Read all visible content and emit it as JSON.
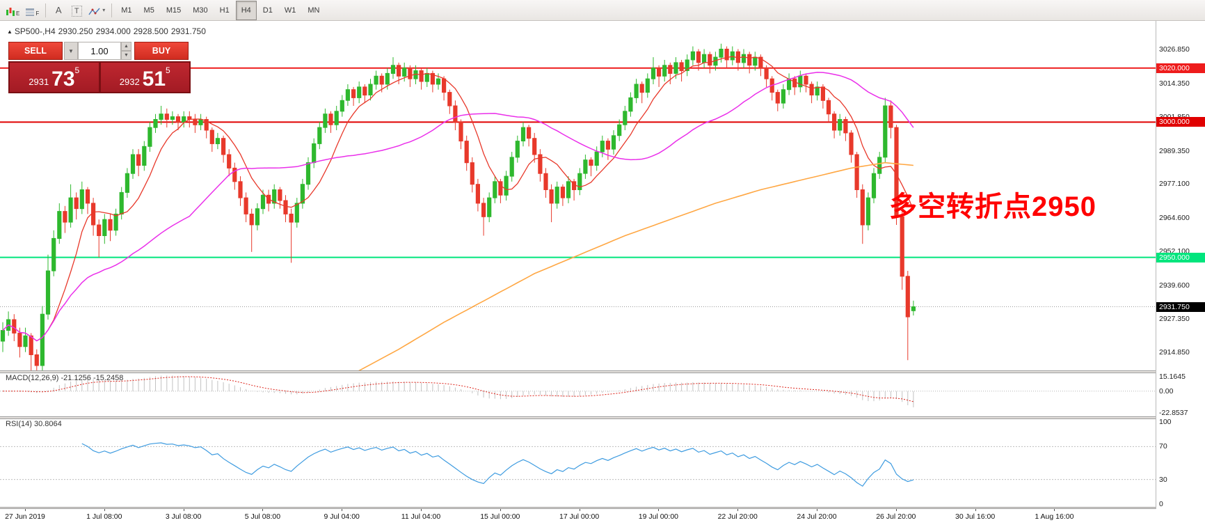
{
  "toolbar": {
    "icons": {
      "e": "E",
      "f": "F",
      "a": "A",
      "t": "T"
    },
    "timeframes": [
      "M1",
      "M5",
      "M15",
      "M30",
      "H1",
      "H4",
      "D1",
      "W1",
      "MN"
    ],
    "active_timeframe": "H4"
  },
  "chart_header": {
    "symbol": "SP500-,H4",
    "open": "2930.250",
    "high": "2934.000",
    "low": "2928.500",
    "close": "2931.750"
  },
  "trade_panel": {
    "sell_label": "SELL",
    "buy_label": "BUY",
    "volume": "1.00",
    "sell_price": {
      "base": "2931",
      "big": "73",
      "sup": "5"
    },
    "buy_price": {
      "base": "2932",
      "big": "51",
      "sup": "5"
    }
  },
  "annotation": {
    "text": "多空转折点2950",
    "color": "#ff0000"
  },
  "price_axis": {
    "ticks": [
      {
        "price": 3026.85,
        "label": "3026.850"
      },
      {
        "price": 3014.35,
        "label": "3014.350"
      },
      {
        "price": 3001.85,
        "label": "3001.850"
      },
      {
        "price": 2989.35,
        "label": "2989.350"
      },
      {
        "price": 2977.1,
        "label": "2977.100"
      },
      {
        "price": 2964.6,
        "label": "2964.600"
      },
      {
        "price": 2952.1,
        "label": "2952.100"
      },
      {
        "price": 2939.6,
        "label": "2939.600"
      },
      {
        "price": 2927.35,
        "label": "2927.350"
      },
      {
        "price": 2914.85,
        "label": "2914.850"
      }
    ]
  },
  "hlines": [
    {
      "price": 3020.0,
      "label": "3020.000",
      "color": "#ee1c1c",
      "width": 2
    },
    {
      "price": 3000.0,
      "label": "3000.000",
      "color": "#e00000",
      "width": 2
    },
    {
      "price": 2950.0,
      "label": "2950.000",
      "color": "#00e57d",
      "width": 2
    }
  ],
  "bid": {
    "price": 2931.75,
    "label": "2931.750"
  },
  "indicators": {
    "macd": {
      "label": "MACD(12,26,9) -21.1256 -15.2458",
      "fast": 12,
      "slow": 26,
      "signal": 9,
      "range": [
        -24,
        16.5
      ],
      "hist_color": "#c2c2c2",
      "signal_color": "#dd2218",
      "ticks": [
        {
          "v": 15.1645,
          "label": "15.1645"
        },
        {
          "v": 0,
          "label": "0.00"
        },
        {
          "v": -22.8537,
          "label": "-22.8537"
        }
      ]
    },
    "rsi": {
      "label": "RSI(14) 30.8064",
      "period": 14,
      "color": "#3d9be0",
      "levels": [
        70,
        30
      ],
      "ticks": [
        {
          "v": 100,
          "label": "100"
        },
        {
          "v": 70,
          "label": "70"
        },
        {
          "v": 30,
          "label": "30"
        },
        {
          "v": 0,
          "label": "0"
        }
      ]
    }
  },
  "chart_data": {
    "type": "candlestick",
    "symbol": "SP500-,H4",
    "timeframe": "H4",
    "y_range": [
      2908.2,
      3036.9
    ],
    "bull_color": "#2eb82e",
    "bear_color": "#e8392b",
    "time_labels": [
      "27 Jun 2019",
      "1 Jul 08:00",
      "3 Jul 08:00",
      "5 Jul 08:00",
      "9 Jul 04:00",
      "11 Jul 04:00",
      "15 Jul 00:00",
      "17 Jul 00:00",
      "19 Jul 00:00",
      "22 Jul 20:00",
      "24 Jul 20:00",
      "26 Jul 20:00",
      "30 Jul 16:00",
      "1 Aug 16:00"
    ],
    "overlays": [
      {
        "name": "ma-fast",
        "type": "sma",
        "period": 8,
        "color": "#e8382a"
      },
      {
        "name": "ma-mid",
        "type": "sma",
        "period": 34,
        "color": "#ea2fea"
      },
      {
        "name": "ma-slow",
        "type": "points",
        "color": "#ffa743",
        "points": [
          [
            62,
            2907
          ],
          [
            70,
            2916
          ],
          [
            78,
            2926
          ],
          [
            86,
            2935
          ],
          [
            94,
            2944
          ],
          [
            102,
            2951
          ],
          [
            110,
            2958
          ],
          [
            118,
            2964
          ],
          [
            126,
            2970
          ],
          [
            134,
            2975
          ],
          [
            142,
            2979
          ],
          [
            150,
            2983
          ],
          [
            156,
            2985
          ],
          [
            161,
            2984
          ]
        ]
      }
    ],
    "candles": [
      [
        2919,
        2926,
        2915,
        2923
      ],
      [
        2923,
        2930,
        2921,
        2927
      ],
      [
        2927,
        2929,
        2919,
        2922
      ],
      [
        2922,
        2924,
        2913,
        2917
      ],
      [
        2917,
        2924,
        2915,
        2921
      ],
      [
        2921,
        2922,
        2908,
        2914
      ],
      [
        2914,
        2916,
        2907,
        2910
      ],
      [
        2910,
        2932,
        2908,
        2929
      ],
      [
        2929,
        2951,
        2927,
        2945
      ],
      [
        2945,
        2960,
        2943,
        2957
      ],
      [
        2957,
        2970,
        2955,
        2967
      ],
      [
        2967,
        2969,
        2959,
        2963
      ],
      [
        2963,
        2977,
        2961,
        2972
      ],
      [
        2972,
        2974,
        2964,
        2968
      ],
      [
        2968,
        2978,
        2966,
        2975
      ],
      [
        2975,
        2976,
        2966,
        2970
      ],
      [
        2970,
        2972,
        2958,
        2962
      ],
      [
        2962,
        2964,
        2950,
        2958
      ],
      [
        2958,
        2966,
        2955,
        2964
      ],
      [
        2964,
        2966,
        2956,
        2960
      ],
      [
        2960,
        2968,
        2958,
        2966
      ],
      [
        2966,
        2976,
        2964,
        2974
      ],
      [
        2974,
        2983,
        2972,
        2981
      ],
      [
        2981,
        2990,
        2979,
        2988
      ],
      [
        2988,
        2990,
        2980,
        2984
      ],
      [
        2984,
        2993,
        2982,
        2991
      ],
      [
        2991,
        3000,
        2989,
        2998
      ],
      [
        2998,
        3003,
        2996,
        3001
      ],
      [
        3001,
        3006,
        2999,
        3003
      ],
      [
        3003,
        3005,
        2998,
        3001
      ],
      [
        3001,
        3004,
        2999,
        3002
      ],
      [
        3002,
        3003,
        2997,
        3000
      ],
      [
        3000,
        3004,
        2998,
        3002
      ],
      [
        3002,
        3004,
        2998,
        3001
      ],
      [
        3001,
        3003,
        2996,
        2999
      ],
      [
        2999,
        3003,
        2997,
        3001
      ],
      [
        3001,
        3002,
        2994,
        2997
      ],
      [
        2997,
        2998,
        2989,
        2992
      ],
      [
        2992,
        2996,
        2990,
        2994
      ],
      [
        2994,
        2995,
        2985,
        2988
      ],
      [
        2988,
        2990,
        2980,
        2983
      ],
      [
        2983,
        2985,
        2975,
        2978
      ],
      [
        2978,
        2980,
        2969,
        2972
      ],
      [
        2972,
        2974,
        2963,
        2966
      ],
      [
        2966,
        2968,
        2952,
        2962
      ],
      [
        2962,
        2970,
        2960,
        2968
      ],
      [
        2968,
        2975,
        2966,
        2973
      ],
      [
        2973,
        2975,
        2967,
        2970
      ],
      [
        2970,
        2977,
        2968,
        2975
      ],
      [
        2975,
        2976,
        2968,
        2971
      ],
      [
        2971,
        2973,
        2963,
        2966
      ],
      [
        2966,
        2968,
        2948,
        2963
      ],
      [
        2963,
        2972,
        2961,
        2970
      ],
      [
        2970,
        2979,
        2968,
        2977
      ],
      [
        2977,
        2987,
        2975,
        2985
      ],
      [
        2985,
        2994,
        2983,
        2992
      ],
      [
        2992,
        3000,
        2990,
        2998
      ],
      [
        2998,
        3005,
        2996,
        3003
      ],
      [
        3003,
        3004,
        2996,
        2999
      ],
      [
        2999,
        3006,
        2997,
        3004
      ],
      [
        3004,
        3010,
        3002,
        3008
      ],
      [
        3008,
        3014,
        3006,
        3012
      ],
      [
        3012,
        3013,
        3006,
        3009
      ],
      [
        3009,
        3015,
        3007,
        3013
      ],
      [
        3013,
        3014,
        3007,
        3010
      ],
      [
        3010,
        3016,
        3008,
        3014
      ],
      [
        3014,
        3019,
        3012,
        3017
      ],
      [
        3017,
        3018,
        3011,
        3014
      ],
      [
        3014,
        3020,
        3012,
        3018
      ],
      [
        3018,
        3024,
        3016,
        3021
      ],
      [
        3021,
        3022,
        3014,
        3017
      ],
      [
        3017,
        3022,
        3015,
        3020
      ],
      [
        3020,
        3021,
        3013,
        3016
      ],
      [
        3016,
        3021,
        3014,
        3019
      ],
      [
        3019,
        3020,
        3012,
        3015
      ],
      [
        3015,
        3020,
        3013,
        3018
      ],
      [
        3018,
        3019,
        3011,
        3014
      ],
      [
        3014,
        3018,
        3012,
        3016
      ],
      [
        3016,
        3017,
        3008,
        3011
      ],
      [
        3011,
        3012,
        3003,
        3006
      ],
      [
        3006,
        3008,
        2997,
        3000
      ],
      [
        3000,
        3001,
        2990,
        2993
      ],
      [
        2993,
        2995,
        2982,
        2985
      ],
      [
        2985,
        2987,
        2974,
        2977
      ],
      [
        2977,
        2979,
        2967,
        2970
      ],
      [
        2970,
        2972,
        2958,
        2965
      ],
      [
        2965,
        2974,
        2963,
        2972
      ],
      [
        2972,
        2980,
        2970,
        2978
      ],
      [
        2978,
        2979,
        2970,
        2973
      ],
      [
        2973,
        2982,
        2971,
        2980
      ],
      [
        2980,
        2989,
        2978,
        2987
      ],
      [
        2987,
        2995,
        2985,
        2993
      ],
      [
        2993,
        3000,
        2991,
        2998
      ],
      [
        2998,
        2999,
        2991,
        2994
      ],
      [
        2994,
        2996,
        2985,
        2988
      ],
      [
        2988,
        2990,
        2978,
        2981
      ],
      [
        2981,
        2983,
        2972,
        2975
      ],
      [
        2975,
        2977,
        2963,
        2970
      ],
      [
        2970,
        2978,
        2968,
        2976
      ],
      [
        2976,
        2977,
        2969,
        2972
      ],
      [
        2972,
        2980,
        2970,
        2978
      ],
      [
        2978,
        2979,
        2971,
        2975
      ],
      [
        2975,
        2983,
        2973,
        2981
      ],
      [
        2981,
        2988,
        2979,
        2986
      ],
      [
        2986,
        2987,
        2980,
        2984
      ],
      [
        2984,
        2991,
        2982,
        2989
      ],
      [
        2989,
        2995,
        2987,
        2993
      ],
      [
        2993,
        2994,
        2986,
        2990
      ],
      [
        2990,
        2997,
        2988,
        2995
      ],
      [
        2995,
        3001,
        2993,
        2999
      ],
      [
        2999,
        3006,
        2997,
        3004
      ],
      [
        3004,
        3011,
        3002,
        3009
      ],
      [
        3009,
        3016,
        3007,
        3014
      ],
      [
        3014,
        3015,
        3007,
        3011
      ],
      [
        3011,
        3018,
        3009,
        3016
      ],
      [
        3016,
        3024,
        3014,
        3020
      ],
      [
        3020,
        3021,
        3013,
        3017
      ],
      [
        3017,
        3023,
        3015,
        3021
      ],
      [
        3021,
        3022,
        3014,
        3018
      ],
      [
        3018,
        3024,
        3016,
        3022
      ],
      [
        3022,
        3023,
        3015,
        3019
      ],
      [
        3019,
        3025,
        3017,
        3023
      ],
      [
        3023,
        3028,
        3021,
        3026
      ],
      [
        3026,
        3027,
        3019,
        3022
      ],
      [
        3022,
        3027,
        3020,
        3025
      ],
      [
        3025,
        3026,
        3018,
        3021
      ],
      [
        3021,
        3026,
        3019,
        3024
      ],
      [
        3024,
        3029,
        3022,
        3027
      ],
      [
        3027,
        3028,
        3020,
        3023
      ],
      [
        3023,
        3028,
        3021,
        3026
      ],
      [
        3026,
        3027,
        3019,
        3022
      ],
      [
        3022,
        3027,
        3020,
        3025
      ],
      [
        3025,
        3026,
        3018,
        3021
      ],
      [
        3021,
        3026,
        3019,
        3024
      ],
      [
        3024,
        3025,
        3017,
        3020
      ],
      [
        3020,
        3021,
        3013,
        3016
      ],
      [
        3016,
        3017,
        3008,
        3011
      ],
      [
        3011,
        3012,
        3004,
        3007
      ],
      [
        3007,
        3014,
        3005,
        3012
      ],
      [
        3012,
        3018,
        3010,
        3016
      ],
      [
        3016,
        3017,
        3010,
        3013
      ],
      [
        3013,
        3019,
        3011,
        3017
      ],
      [
        3017,
        3018,
        3011,
        3014
      ],
      [
        3014,
        3015,
        3007,
        3010
      ],
      [
        3010,
        3015,
        3008,
        3013
      ],
      [
        3013,
        3014,
        3005,
        3008
      ],
      [
        3008,
        3009,
        3000,
        3003
      ],
      [
        3003,
        3004,
        2994,
        2997
      ],
      [
        2997,
        3003,
        2995,
        3001
      ],
      [
        3001,
        3002,
        2993,
        2996
      ],
      [
        2996,
        2997,
        2985,
        2988
      ],
      [
        2988,
        2989,
        2972,
        2975
      ],
      [
        2975,
        2977,
        2955,
        2962
      ],
      [
        2962,
        2974,
        2960,
        2972
      ],
      [
        2972,
        2983,
        2970,
        2981
      ],
      [
        2981,
        2989,
        2979,
        2987
      ],
      [
        2987,
        3009,
        2985,
        3006
      ],
      [
        3006,
        3008,
        2994,
        2998
      ],
      [
        2998,
        2999,
        2962,
        2965
      ],
      [
        2965,
        2967,
        2938,
        2943
      ],
      [
        2943,
        2945,
        2912,
        2928
      ],
      [
        2930.25,
        2934,
        2928.5,
        2931.75
      ]
    ]
  }
}
